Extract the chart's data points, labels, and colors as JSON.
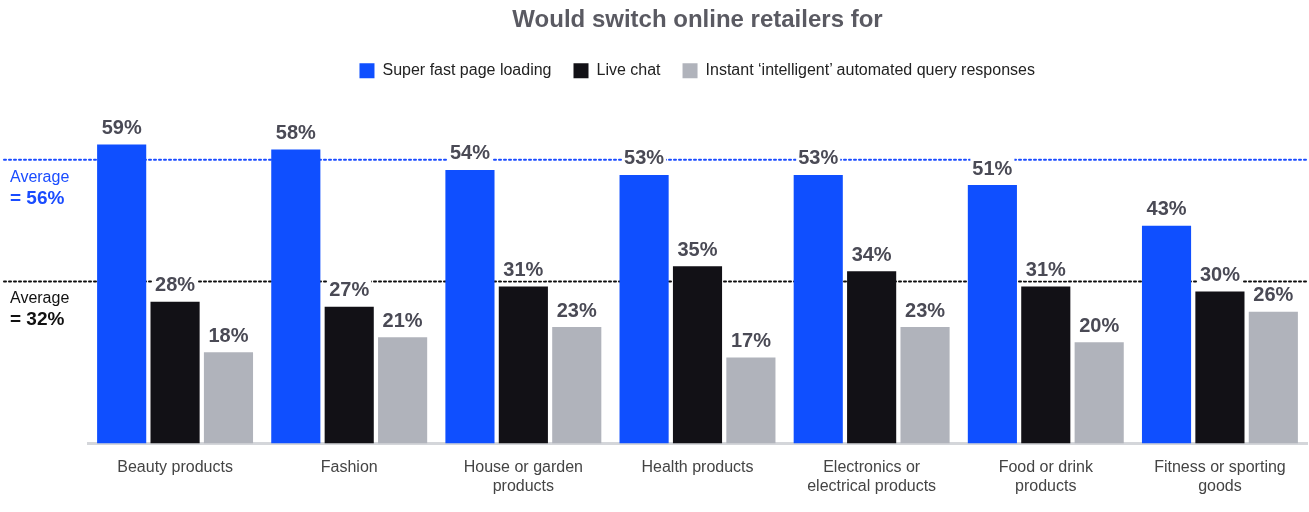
{
  "chart_data": {
    "type": "bar",
    "title": "Would switch online retailers for",
    "categories": [
      "Beauty products",
      "Fashion",
      "House or garden products",
      "Health products",
      "Electronics or electrical products",
      "Food or drink products",
      "Fitness or sporting goods"
    ],
    "series": [
      {
        "name": "Super fast page loading",
        "color": "#0f4fff",
        "values": [
          59,
          58,
          54,
          53,
          53,
          51,
          43
        ],
        "value_labels": [
          "59%",
          "58%",
          "54%",
          "53%",
          "53%",
          "51%",
          "43%"
        ]
      },
      {
        "name": "Live chat",
        "color": "#121116",
        "values": [
          28,
          27,
          31,
          35,
          34,
          31,
          30
        ],
        "value_labels": [
          "28%",
          "27%",
          "31%",
          "35%",
          "34%",
          "31%",
          "30%"
        ]
      },
      {
        "name": "Instant ‘intelligent’ automated query responses",
        "color": "#b0b3bb",
        "values": [
          18,
          21,
          23,
          17,
          23,
          20,
          26
        ],
        "value_labels": [
          "18%",
          "21%",
          "23%",
          "17%",
          "23%",
          "20%",
          "26%"
        ]
      }
    ],
    "ref_lines": [
      {
        "axis": "y",
        "value": 56,
        "label": "Average = 56%",
        "color": "#1a4cff",
        "line_style": "dotted"
      },
      {
        "axis": "y",
        "value": 32,
        "label": "Average = 32%",
        "color": "#111111",
        "line_style": "dotted"
      }
    ],
    "legend": "top",
    "grid": false
  }
}
